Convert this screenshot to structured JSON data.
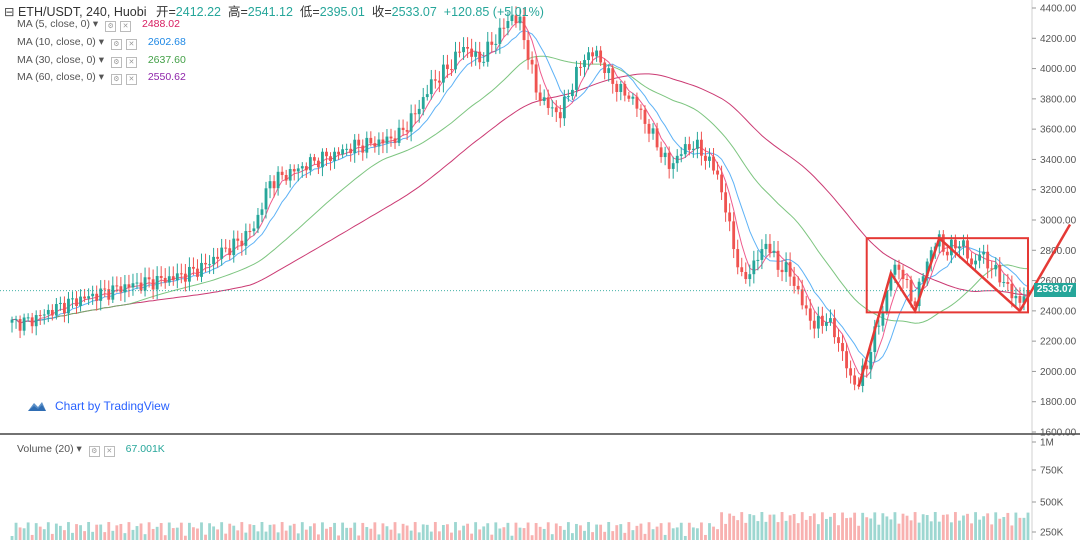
{
  "header": {
    "symbol": "ETH/USDT, 240, Huobi",
    "open_label": "开=",
    "open": "2412.22",
    "high_label": "高=",
    "high": "2541.12",
    "low_label": "低=",
    "low": "2395.01",
    "close_label": "收=",
    "close": "2533.07",
    "change": "+120.85 (+5.01%)"
  },
  "indicators": [
    {
      "label": "MA (5, close, 0)",
      "value": "2488.02",
      "color": "#d81b60"
    },
    {
      "label": "MA (10, close, 0)",
      "value": "2602.68",
      "color": "#1e88e5"
    },
    {
      "label": "MA (30, close, 0)",
      "value": "2637.60",
      "color": "#43a047"
    },
    {
      "label": "MA (60, close, 0)",
      "value": "2550.62",
      "color": "#8e24aa"
    }
  ],
  "volume_indicator": {
    "label": "Volume (20)",
    "value": "67.001K"
  },
  "watermark": "Chart by TradingView",
  "last_price": "2533.07",
  "colors": {
    "up": "#26a69a",
    "down": "#ef5350",
    "annotation": "#e53935",
    "ma60": "#c2185b",
    "ma30": "#66bb6a",
    "ma10": "#42a5f5"
  },
  "chart_data": {
    "type": "candlestick",
    "price_axis": {
      "ticks": [
        "4400.00",
        "4200.00",
        "4000.00",
        "3800.00",
        "3600.00",
        "3400.00",
        "3200.00",
        "3000.00",
        "2800.00",
        "2600.00",
        "2400.00",
        "2200.00",
        "2000.00",
        "1800.00",
        "1600.00"
      ],
      "range": [
        1600,
        4400
      ]
    },
    "volume_axis": {
      "ticks": [
        "1M",
        "750K",
        "500K",
        "250K"
      ]
    },
    "anchors": [
      [
        0,
        2320
      ],
      [
        4,
        2330
      ],
      [
        8,
        2380
      ],
      [
        12,
        2430
      ],
      [
        16,
        2470
      ],
      [
        20,
        2500
      ],
      [
        24,
        2530
      ],
      [
        28,
        2560
      ],
      [
        32,
        2580
      ],
      [
        36,
        2600
      ],
      [
        40,
        2620
      ],
      [
        44,
        2650
      ],
      [
        48,
        2700
      ],
      [
        52,
        2790
      ],
      [
        56,
        2850
      ],
      [
        60,
        2950
      ],
      [
        64,
        3250
      ],
      [
        68,
        3300
      ],
      [
        72,
        3350
      ],
      [
        76,
        3400
      ],
      [
        80,
        3430
      ],
      [
        84,
        3480
      ],
      [
        88,
        3500
      ],
      [
        92,
        3520
      ],
      [
        96,
        3560
      ],
      [
        100,
        3700
      ],
      [
        104,
        3900
      ],
      [
        108,
        4000
      ],
      [
        112,
        4150
      ],
      [
        116,
        4050
      ],
      [
        120,
        4200
      ],
      [
        124,
        4350
      ],
      [
        126,
        4300
      ],
      [
        128,
        4100
      ],
      [
        130,
        3850
      ],
      [
        133,
        3750
      ],
      [
        136,
        3700
      ],
      [
        139,
        3900
      ],
      [
        142,
        4080
      ],
      [
        145,
        4100
      ],
      [
        148,
        3950
      ],
      [
        151,
        3850
      ],
      [
        154,
        3800
      ],
      [
        157,
        3650
      ],
      [
        160,
        3500
      ],
      [
        163,
        3350
      ],
      [
        166,
        3450
      ],
      [
        169,
        3500
      ],
      [
        172,
        3420
      ],
      [
        175,
        3300
      ],
      [
        178,
        2950
      ],
      [
        181,
        2600
      ],
      [
        184,
        2700
      ],
      [
        187,
        2850
      ],
      [
        190,
        2700
      ],
      [
        193,
        2650
      ],
      [
        196,
        2450
      ],
      [
        199,
        2300
      ],
      [
        202,
        2350
      ],
      [
        205,
        2200
      ],
      [
        208,
        1950
      ],
      [
        210,
        1920
      ],
      [
        212,
        2050
      ],
      [
        214,
        2250
      ],
      [
        216,
        2400
      ],
      [
        218,
        2650
      ],
      [
        220,
        2700
      ],
      [
        222,
        2550
      ],
      [
        224,
        2450
      ],
      [
        226,
        2650
      ],
      [
        228,
        2800
      ],
      [
        230,
        2870
      ],
      [
        232,
        2780
      ],
      [
        234,
        2850
      ],
      [
        236,
        2830
      ],
      [
        238,
        2700
      ],
      [
        240,
        2780
      ],
      [
        242,
        2720
      ],
      [
        244,
        2650
      ],
      [
        246,
        2600
      ],
      [
        248,
        2500
      ],
      [
        250,
        2470
      ],
      [
        252,
        2533
      ]
    ],
    "annotations": {
      "rectangle": {
        "price_top": 2880,
        "price_bottom": 2390
      },
      "zigzag_prices": [
        1900,
        2650,
        2400,
        2880,
        2400
      ],
      "projection_to": 2970
    }
  }
}
